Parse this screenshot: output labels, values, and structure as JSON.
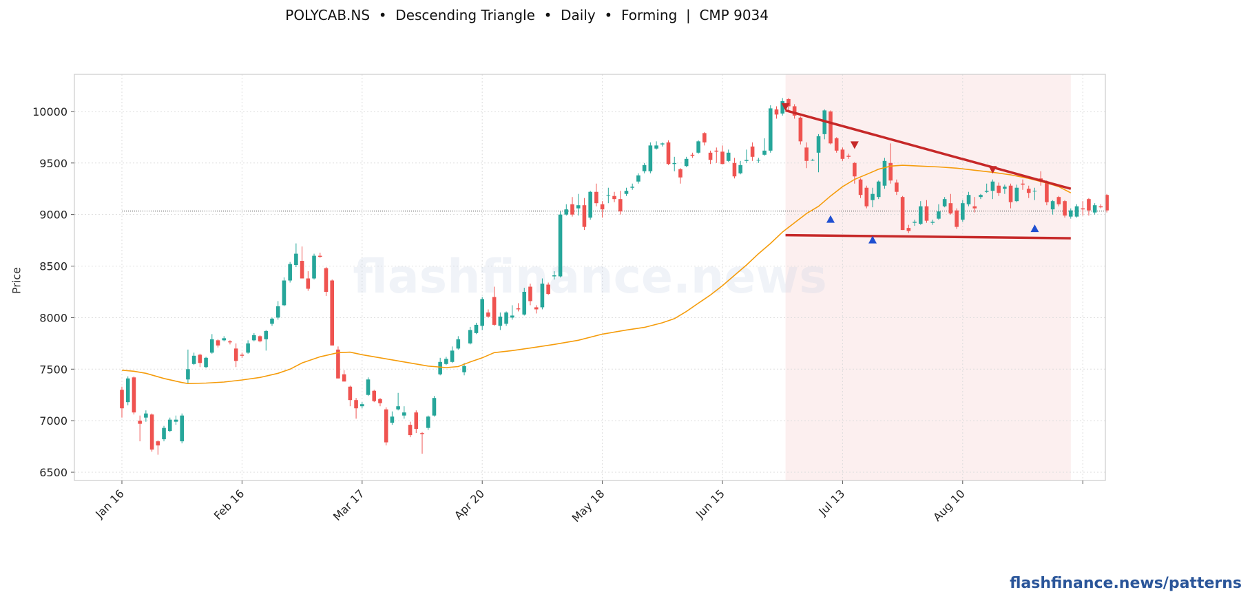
{
  "header": {
    "title": "POLYCAB.NS  •  Descending Triangle  •  Daily  •  Forming  |  CMP 9034"
  },
  "footer": {
    "link": "flashfinance.news/patterns",
    "color": "#2a5599"
  },
  "watermark": "flashfinance.news",
  "colors": {
    "bull": "#26a69a",
    "bear": "#ef5350",
    "ma": "#f59c0b",
    "trendline": "#c62828",
    "peak_marker": "#c62828",
    "trough_marker": "#1f4fd1",
    "pattern_zone": "#f8dcdc"
  },
  "chart_data": {
    "type": "candlestick",
    "title": "",
    "ylabel": "Price",
    "ylim": [
      6420,
      10360
    ],
    "grid": true,
    "yticks": [
      6500,
      7000,
      7500,
      8000,
      8500,
      9000,
      9500,
      10000
    ],
    "xtick_labels": [
      "Jan 16",
      "Feb 16",
      "Mar 17",
      "Apr 20",
      "May 18",
      "Jun 15",
      "Jul 13",
      "Aug 10",
      ""
    ],
    "xtick_index": [
      0,
      20,
      40,
      60,
      80,
      100,
      120,
      140,
      160
    ],
    "reference_line": {
      "value": 9034,
      "label": "CMP"
    },
    "candles": [
      [
        7300,
        7330,
        7030,
        7120
      ],
      [
        7180,
        7430,
        7150,
        7410
      ],
      [
        7420,
        7430,
        7060,
        7080
      ],
      [
        7000,
        7050,
        6800,
        6970
      ],
      [
        7030,
        7100,
        6990,
        7070
      ],
      [
        7060,
        7070,
        6700,
        6720
      ],
      [
        6800,
        6810,
        6670,
        6760
      ],
      [
        6820,
        6950,
        6800,
        6930
      ],
      [
        6900,
        7030,
        6890,
        7010
      ],
      [
        6990,
        7050,
        6960,
        7010
      ],
      [
        6800,
        7070,
        6780,
        7050
      ],
      [
        7400,
        7690,
        7360,
        7500
      ],
      [
        7550,
        7660,
        7540,
        7630
      ],
      [
        7640,
        7650,
        7520,
        7560
      ],
      [
        7520,
        7620,
        7510,
        7610
      ],
      [
        7660,
        7840,
        7650,
        7790
      ],
      [
        7780,
        7790,
        7710,
        7730
      ],
      [
        7780,
        7820,
        7770,
        7800
      ],
      [
        7770,
        7780,
        7740,
        7760
      ],
      [
        7700,
        7750,
        7520,
        7580
      ],
      [
        7640,
        7660,
        7610,
        7630
      ],
      [
        7660,
        7780,
        7650,
        7750
      ],
      [
        7780,
        7850,
        7770,
        7830
      ],
      [
        7820,
        7830,
        7760,
        7770
      ],
      [
        7790,
        7880,
        7680,
        7870
      ],
      [
        7940,
        8000,
        7920,
        7990
      ],
      [
        8000,
        8160,
        7980,
        8110
      ],
      [
        8120,
        8390,
        8110,
        8360
      ],
      [
        8360,
        8540,
        8340,
        8520
      ],
      [
        8510,
        8720,
        8490,
        8620
      ],
      [
        8550,
        8690,
        8380,
        8380
      ],
      [
        8380,
        8450,
        8260,
        8280
      ],
      [
        8380,
        8620,
        8370,
        8600
      ],
      [
        8600,
        8630,
        8580,
        8590
      ],
      [
        8480,
        8490,
        8210,
        8250
      ],
      [
        8360,
        8370,
        7730,
        7730
      ],
      [
        7690,
        7720,
        7410,
        7410
      ],
      [
        7450,
        7490,
        7380,
        7380
      ],
      [
        7330,
        7340,
        7140,
        7200
      ],
      [
        7200,
        7220,
        7020,
        7120
      ],
      [
        7140,
        7180,
        7120,
        7160
      ],
      [
        7250,
        7420,
        7240,
        7400
      ],
      [
        7290,
        7300,
        7180,
        7190
      ],
      [
        7210,
        7220,
        7140,
        7170
      ],
      [
        7110,
        7130,
        6760,
        6790
      ],
      [
        6980,
        7090,
        6960,
        7040
      ],
      [
        7110,
        7270,
        7100,
        7140
      ],
      [
        7050,
        7140,
        7020,
        7080
      ],
      [
        6960,
        6990,
        6840,
        6860
      ],
      [
        7080,
        7100,
        6880,
        6920
      ],
      [
        6880,
        6890,
        6680,
        6870
      ],
      [
        6930,
        7050,
        6910,
        7040
      ],
      [
        7050,
        7240,
        7040,
        7220
      ],
      [
        7450,
        7610,
        7440,
        7570
      ],
      [
        7550,
        7620,
        7540,
        7600
      ],
      [
        7570,
        7720,
        7560,
        7680
      ],
      [
        7700,
        7820,
        7690,
        7790
      ],
      [
        7470,
        7560,
        7440,
        7530
      ],
      [
        7750,
        7910,
        7740,
        7880
      ],
      [
        7850,
        7950,
        7840,
        7930
      ],
      [
        7920,
        8200,
        7880,
        8180
      ],
      [
        8050,
        8080,
        8000,
        8010
      ],
      [
        8200,
        8300,
        7920,
        7930
      ],
      [
        7920,
        8050,
        7880,
        8010
      ],
      [
        7940,
        8060,
        7920,
        8050
      ],
      [
        8000,
        8120,
        7980,
        8020
      ],
      [
        8090,
        8140,
        8060,
        8080
      ],
      [
        8030,
        8290,
        8020,
        8250
      ],
      [
        8300,
        8330,
        8120,
        8160
      ],
      [
        8100,
        8120,
        8040,
        8080
      ],
      [
        8100,
        8380,
        8080,
        8330
      ],
      [
        8320,
        8340,
        8220,
        8230
      ],
      [
        8400,
        8450,
        8370,
        8410
      ],
      [
        8400,
        9030,
        8390,
        9000
      ],
      [
        9000,
        9100,
        8990,
        9050
      ],
      [
        9100,
        9170,
        8980,
        9000
      ],
      [
        9060,
        9200,
        8990,
        9090
      ],
      [
        9090,
        9160,
        8850,
        8880
      ],
      [
        8970,
        9230,
        8950,
        9220
      ],
      [
        9220,
        9300,
        9080,
        9110
      ],
      [
        9100,
        9130,
        8970,
        9050
      ],
      [
        9190,
        9260,
        9110,
        9190
      ],
      [
        9180,
        9220,
        9120,
        9150
      ],
      [
        9150,
        9230,
        9000,
        9030
      ],
      [
        9200,
        9260,
        9180,
        9230
      ],
      [
        9260,
        9300,
        9240,
        9270
      ],
      [
        9320,
        9400,
        9300,
        9380
      ],
      [
        9420,
        9500,
        9400,
        9480
      ],
      [
        9420,
        9700,
        9400,
        9670
      ],
      [
        9640,
        9710,
        9630,
        9670
      ],
      [
        9680,
        9700,
        9660,
        9690
      ],
      [
        9700,
        9720,
        9480,
        9490
      ],
      [
        9490,
        9560,
        9420,
        9500
      ],
      [
        9440,
        9450,
        9300,
        9360
      ],
      [
        9470,
        9560,
        9460,
        9540
      ],
      [
        9580,
        9600,
        9550,
        9570
      ],
      [
        9600,
        9720,
        9590,
        9710
      ],
      [
        9790,
        9800,
        9670,
        9700
      ],
      [
        9600,
        9620,
        9490,
        9530
      ],
      [
        9620,
        9650,
        9500,
        9610
      ],
      [
        9610,
        9670,
        9490,
        9490
      ],
      [
        9520,
        9630,
        9510,
        9600
      ],
      [
        9500,
        9550,
        9350,
        9370
      ],
      [
        9400,
        9520,
        9390,
        9480
      ],
      [
        9520,
        9630,
        9500,
        9530
      ],
      [
        9660,
        9700,
        9520,
        9560
      ],
      [
        9530,
        9550,
        9500,
        9530
      ],
      [
        9580,
        9740,
        9570,
        9620
      ],
      [
        9620,
        10060,
        9600,
        10030
      ],
      [
        10020,
        10050,
        9930,
        9970
      ],
      [
        9980,
        10130,
        9960,
        10100
      ],
      [
        10120,
        10130,
        10000,
        10050
      ],
      [
        10050,
        10070,
        9930,
        9960
      ],
      [
        9940,
        9950,
        9680,
        9710
      ],
      [
        9650,
        9700,
        9450,
        9520
      ],
      [
        9530,
        9540,
        9520,
        9530
      ],
      [
        9600,
        9780,
        9410,
        9760
      ],
      [
        9780,
        10020,
        9730,
        10010
      ],
      [
        10000,
        10010,
        9680,
        9690
      ],
      [
        9740,
        9750,
        9600,
        9620
      ],
      [
        9630,
        9650,
        9520,
        9540
      ],
      [
        9570,
        9590,
        9540,
        9560
      ],
      [
        9500,
        9510,
        9300,
        9370
      ],
      [
        9340,
        9350,
        9160,
        9190
      ],
      [
        9260,
        9280,
        9060,
        9080
      ],
      [
        9140,
        9260,
        9070,
        9200
      ],
      [
        9170,
        9330,
        9150,
        9320
      ],
      [
        9280,
        9550,
        9250,
        9520
      ],
      [
        9500,
        9690,
        9300,
        9330
      ],
      [
        9310,
        9340,
        9190,
        9220
      ],
      [
        9170,
        9180,
        8850,
        8850
      ],
      [
        8870,
        8900,
        8820,
        8840
      ],
      [
        8920,
        8950,
        8890,
        8930
      ],
      [
        8910,
        9130,
        8900,
        9080
      ],
      [
        9080,
        9140,
        8920,
        8940
      ],
      [
        8920,
        8950,
        8900,
        8930
      ],
      [
        8960,
        9100,
        8950,
        9030
      ],
      [
        9080,
        9170,
        9070,
        9150
      ],
      [
        9110,
        9200,
        9000,
        9010
      ],
      [
        9040,
        9060,
        8860,
        8880
      ],
      [
        8950,
        9140,
        8930,
        9110
      ],
      [
        9100,
        9220,
        9080,
        9190
      ],
      [
        9080,
        9170,
        9020,
        9060
      ],
      [
        9170,
        9200,
        9150,
        9190
      ],
      [
        9220,
        9300,
        9210,
        9230
      ],
      [
        9230,
        9340,
        9150,
        9320
      ],
      [
        9280,
        9310,
        9180,
        9210
      ],
      [
        9250,
        9290,
        9200,
        9270
      ],
      [
        9280,
        9300,
        9060,
        9120
      ],
      [
        9130,
        9290,
        9120,
        9260
      ],
      [
        9300,
        9340,
        9240,
        9290
      ],
      [
        9250,
        9280,
        9160,
        9210
      ],
      [
        9230,
        9260,
        9140,
        9230
      ],
      [
        9350,
        9420,
        9280,
        9320
      ],
      [
        9320,
        9330,
        9090,
        9120
      ],
      [
        9050,
        9140,
        9000,
        9130
      ],
      [
        9170,
        9180,
        9080,
        9100
      ],
      [
        9130,
        9140,
        8970,
        8990
      ],
      [
        8980,
        9060,
        8960,
        9040
      ],
      [
        8980,
        9100,
        8970,
        9080
      ],
      [
        9060,
        9130,
        8990,
        9050
      ],
      [
        9150,
        9160,
        8990,
        9040
      ],
      [
        9020,
        9110,
        9000,
        9090
      ],
      [
        9080,
        9100,
        9060,
        9070
      ],
      [
        9190,
        9200,
        9020,
        9040
      ]
    ],
    "moving_average": [
      [
        0,
        7490
      ],
      [
        2,
        7480
      ],
      [
        4,
        7460
      ],
      [
        7,
        7410
      ],
      [
        10,
        7370
      ],
      [
        11,
        7360
      ],
      [
        14,
        7365
      ],
      [
        17,
        7375
      ],
      [
        20,
        7395
      ],
      [
        23,
        7420
      ],
      [
        26,
        7460
      ],
      [
        28,
        7500
      ],
      [
        30,
        7560
      ],
      [
        33,
        7620
      ],
      [
        36,
        7660
      ],
      [
        38,
        7665
      ],
      [
        40,
        7640
      ],
      [
        42,
        7620
      ],
      [
        45,
        7590
      ],
      [
        48,
        7560
      ],
      [
        51,
        7530
      ],
      [
        54,
        7515
      ],
      [
        56,
        7525
      ],
      [
        58,
        7570
      ],
      [
        60,
        7610
      ],
      [
        62,
        7660
      ],
      [
        65,
        7680
      ],
      [
        68,
        7705
      ],
      [
        72,
        7740
      ],
      [
        76,
        7780
      ],
      [
        80,
        7840
      ],
      [
        84,
        7880
      ],
      [
        87,
        7905
      ],
      [
        90,
        7950
      ],
      [
        92,
        7990
      ],
      [
        94,
        8060
      ],
      [
        96,
        8140
      ],
      [
        98,
        8220
      ],
      [
        100,
        8310
      ],
      [
        102,
        8410
      ],
      [
        104,
        8510
      ],
      [
        106,
        8620
      ],
      [
        108,
        8720
      ],
      [
        110,
        8830
      ],
      [
        112,
        8920
      ],
      [
        114,
        9010
      ],
      [
        116,
        9080
      ],
      [
        118,
        9180
      ],
      [
        120,
        9270
      ],
      [
        122,
        9340
      ],
      [
        124,
        9390
      ],
      [
        126,
        9440
      ],
      [
        128,
        9470
      ],
      [
        130,
        9478
      ],
      [
        133,
        9470
      ],
      [
        136,
        9462
      ],
      [
        139,
        9450
      ],
      [
        142,
        9430
      ],
      [
        145,
        9410
      ],
      [
        148,
        9385
      ],
      [
        151,
        9350
      ],
      [
        154,
        9305
      ],
      [
        156,
        9270
      ],
      [
        158,
        9210
      ]
    ],
    "pattern": {
      "name": "Descending Triangle",
      "status": "Forming",
      "zone_start": 110.5,
      "zone_end": 158,
      "upper_line": [
        [
          110.5,
          10010
        ],
        [
          158,
          9250
        ]
      ],
      "lower_line": [
        [
          110.5,
          8800
        ],
        [
          158,
          8770
        ]
      ],
      "peaks": [
        [
          110.5,
          10040
        ],
        [
          122,
          9670
        ],
        [
          145,
          9430
        ]
      ],
      "troughs": [
        [
          118,
          8960
        ],
        [
          125,
          8760
        ],
        [
          152,
          8870
        ]
      ]
    }
  }
}
